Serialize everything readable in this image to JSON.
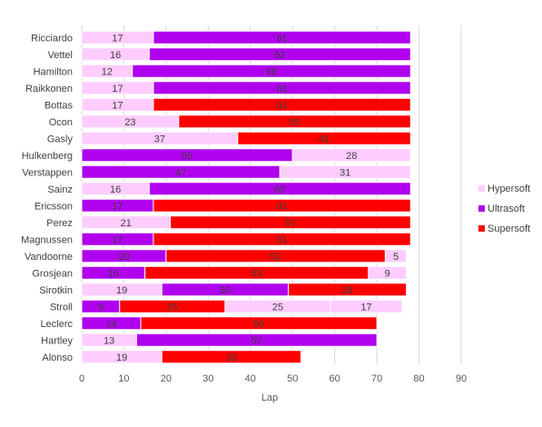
{
  "chart_data": {
    "type": "bar",
    "orientation": "horizontal",
    "stacked": true,
    "title": "",
    "xlabel": "Lap",
    "ylabel": "",
    "xlim": [
      0,
      90
    ],
    "x_ticks": [
      0,
      10,
      20,
      30,
      40,
      50,
      60,
      70,
      80,
      90
    ],
    "grid": "vertical gridlines",
    "legend_position": "right",
    "colors": {
      "Hypersoft": "#ffccff",
      "Ultrasoft": "#b000ee",
      "Supersoft": "#ff0000"
    },
    "legend": [
      "Hypersoft",
      "Ultrasoft",
      "Supersoft"
    ],
    "drivers": [
      {
        "name": "Ricciardo",
        "stints": [
          {
            "tyre": "Hypersoft",
            "laps": 17
          },
          {
            "tyre": "Ultrasoft",
            "laps": 61
          }
        ]
      },
      {
        "name": "Vettel",
        "stints": [
          {
            "tyre": "Hypersoft",
            "laps": 16
          },
          {
            "tyre": "Ultrasoft",
            "laps": 62
          }
        ]
      },
      {
        "name": "Hamilton",
        "stints": [
          {
            "tyre": "Hypersoft",
            "laps": 12
          },
          {
            "tyre": "Ultrasoft",
            "laps": 66
          }
        ]
      },
      {
        "name": "Raikkonen",
        "stints": [
          {
            "tyre": "Hypersoft",
            "laps": 17
          },
          {
            "tyre": "Ultrasoft",
            "laps": 61
          }
        ]
      },
      {
        "name": "Bottas",
        "stints": [
          {
            "tyre": "Hypersoft",
            "laps": 17
          },
          {
            "tyre": "Supersoft",
            "laps": 61
          }
        ]
      },
      {
        "name": "Ocon",
        "stints": [
          {
            "tyre": "Hypersoft",
            "laps": 23
          },
          {
            "tyre": "Supersoft",
            "laps": 55
          }
        ]
      },
      {
        "name": "Gasly",
        "stints": [
          {
            "tyre": "Hypersoft",
            "laps": 37
          },
          {
            "tyre": "Supersoft",
            "laps": 41
          }
        ]
      },
      {
        "name": "Hulkenberg",
        "stints": [
          {
            "tyre": "Ultrasoft",
            "laps": 50
          },
          {
            "tyre": "Hypersoft",
            "laps": 28
          }
        ]
      },
      {
        "name": "Verstappen",
        "stints": [
          {
            "tyre": "Ultrasoft",
            "laps": 47
          },
          {
            "tyre": "Hypersoft",
            "laps": 31
          }
        ]
      },
      {
        "name": "Sainz",
        "stints": [
          {
            "tyre": "Hypersoft",
            "laps": 16
          },
          {
            "tyre": "Ultrasoft",
            "laps": 62
          }
        ]
      },
      {
        "name": "Ericsson",
        "stints": [
          {
            "tyre": "Ultrasoft",
            "laps": 17
          },
          {
            "tyre": "Supersoft",
            "laps": 61
          }
        ]
      },
      {
        "name": "Perez",
        "stints": [
          {
            "tyre": "Hypersoft",
            "laps": 21
          },
          {
            "tyre": "Supersoft",
            "laps": 57
          }
        ]
      },
      {
        "name": "Magnussen",
        "stints": [
          {
            "tyre": "Ultrasoft",
            "laps": 17
          },
          {
            "tyre": "Supersoft",
            "laps": 61
          }
        ]
      },
      {
        "name": "Vandoorne",
        "stints": [
          {
            "tyre": "Ultrasoft",
            "laps": 20
          },
          {
            "tyre": "Supersoft",
            "laps": 52
          },
          {
            "tyre": "Hypersoft",
            "laps": 5
          }
        ]
      },
      {
        "name": "Grosjean",
        "stints": [
          {
            "tyre": "Ultrasoft",
            "laps": 15
          },
          {
            "tyre": "Supersoft",
            "laps": 53
          },
          {
            "tyre": "Hypersoft",
            "laps": 9
          }
        ]
      },
      {
        "name": "Sirotkin",
        "stints": [
          {
            "tyre": "Hypersoft",
            "laps": 19
          },
          {
            "tyre": "Ultrasoft",
            "laps": 30
          },
          {
            "tyre": "Supersoft",
            "laps": 28
          }
        ]
      },
      {
        "name": "Stroll",
        "stints": [
          {
            "tyre": "Ultrasoft",
            "laps": 9
          },
          {
            "tyre": "Supersoft",
            "laps": 25
          },
          {
            "tyre": "Hypersoft",
            "laps": 25
          },
          {
            "tyre": "Hypersoft",
            "laps": 17
          }
        ]
      },
      {
        "name": "Leclerc",
        "stints": [
          {
            "tyre": "Ultrasoft",
            "laps": 14
          },
          {
            "tyre": "Supersoft",
            "laps": 56
          }
        ]
      },
      {
        "name": "Hartley",
        "stints": [
          {
            "tyre": "Hypersoft",
            "laps": 13
          },
          {
            "tyre": "Ultrasoft",
            "laps": 57
          }
        ]
      },
      {
        "name": "Alonso",
        "stints": [
          {
            "tyre": "Hypersoft",
            "laps": 19
          },
          {
            "tyre": "Supersoft",
            "laps": 33
          }
        ]
      }
    ]
  }
}
